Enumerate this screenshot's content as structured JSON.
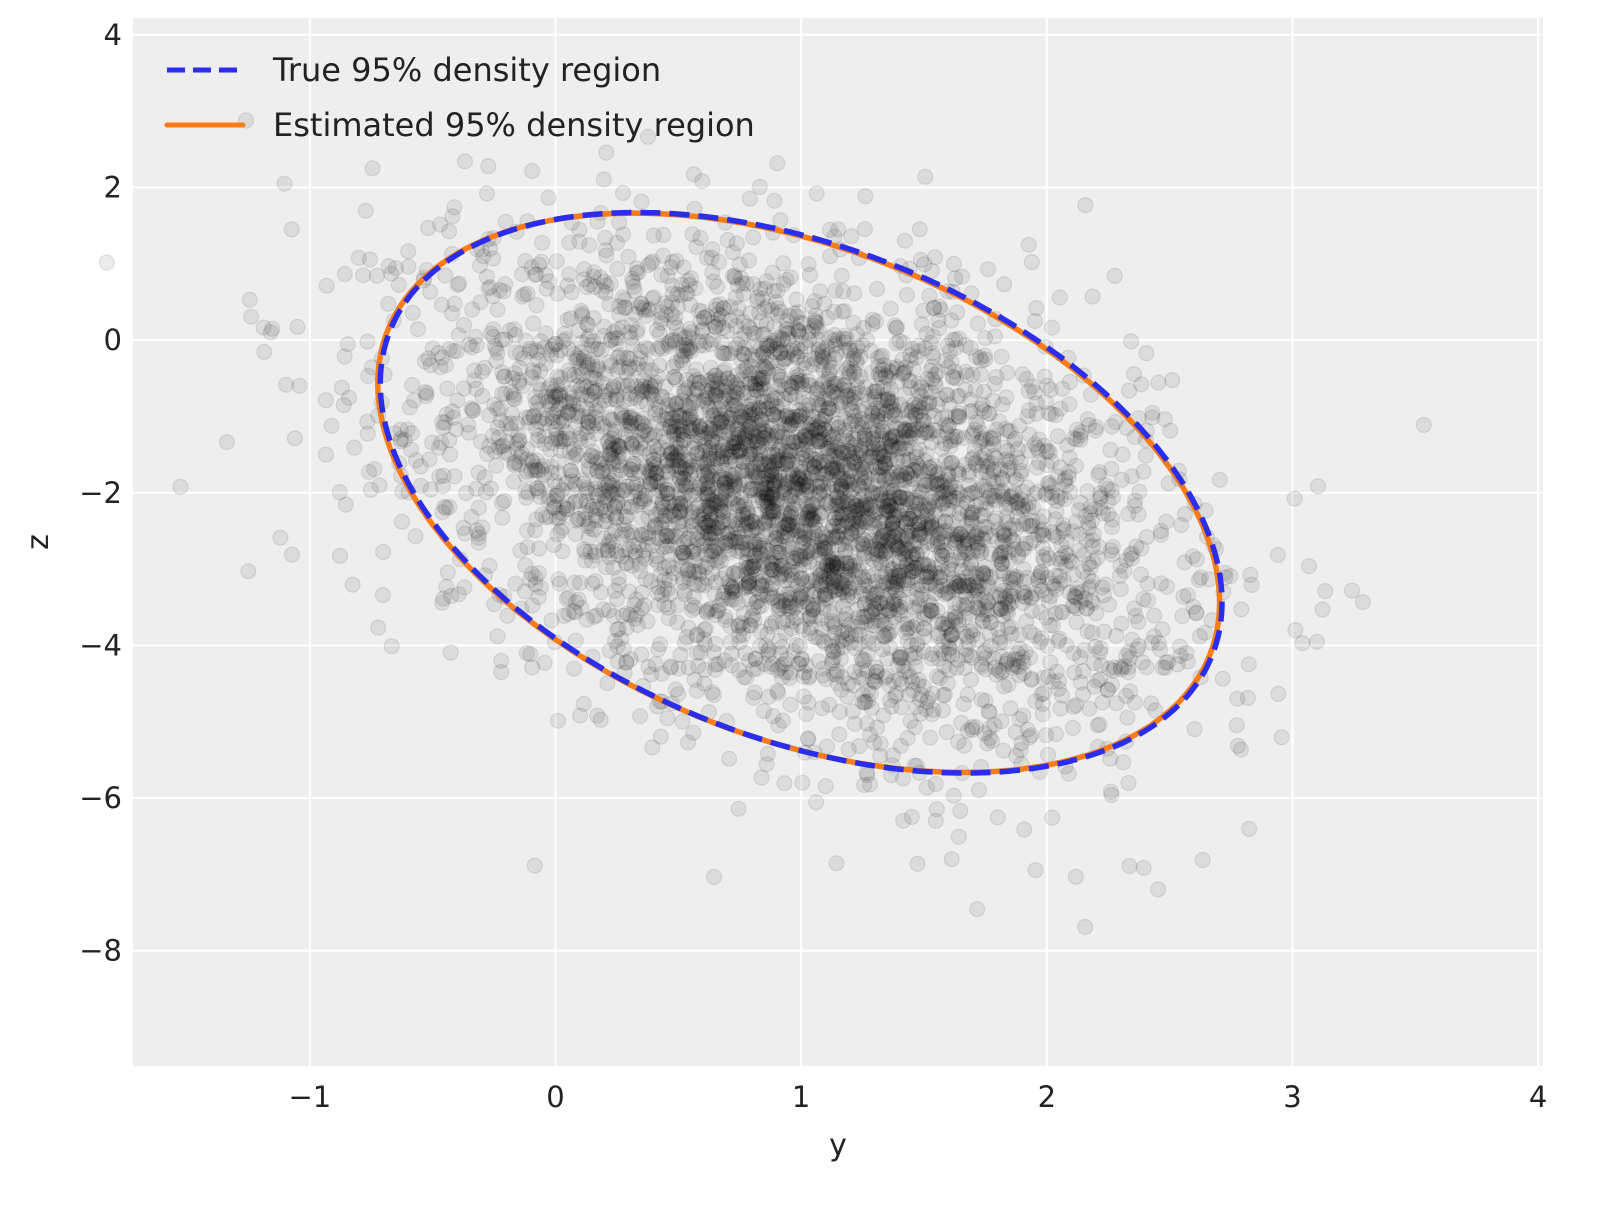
{
  "chart_data": {
    "type": "scatter",
    "title": "",
    "xlabel": "y",
    "ylabel": "z",
    "xlim": [
      -1.72,
      4.02
    ],
    "ylim": [
      -9.51,
      4.22
    ],
    "xticks": [
      -1,
      0,
      1,
      2,
      3,
      4
    ],
    "yticks": [
      4,
      2,
      0,
      -2,
      -4,
      -6,
      -8
    ],
    "xtick_labels": [
      "−1",
      "0",
      "1",
      "2",
      "3",
      "4"
    ],
    "ytick_labels": [
      "4",
      "2",
      "0",
      "−2",
      "−4",
      "−6",
      "−8"
    ],
    "grid": true,
    "background_color": "#eeeeee",
    "legend_placement": "top-left",
    "scatter": {
      "description": "samples from a bivariate normal",
      "approx_count": 5000,
      "mean": [
        1.0,
        -2.0
      ],
      "covariance": [
        [
          0.49,
          -0.41
        ],
        [
          -0.41,
          2.25
        ]
      ],
      "color": "#000000",
      "alpha": 0.08
    },
    "series": [
      {
        "name": "True 95% density region",
        "style": "dashed",
        "color": "#2a2eec",
        "mean": [
          1.0,
          -2.0
        ],
        "covariance": [
          [
            0.49,
            -0.41
          ],
          [
            -0.41,
            2.25
          ]
        ],
        "probability": 0.95
      },
      {
        "name": "Estimated 95% density region",
        "style": "solid",
        "color": "#fa7c17",
        "mean": [
          0.99,
          -2.0
        ],
        "covariance": [
          [
            0.49,
            -0.41
          ],
          [
            -0.41,
            2.24
          ]
        ],
        "probability": 0.95
      }
    ]
  }
}
